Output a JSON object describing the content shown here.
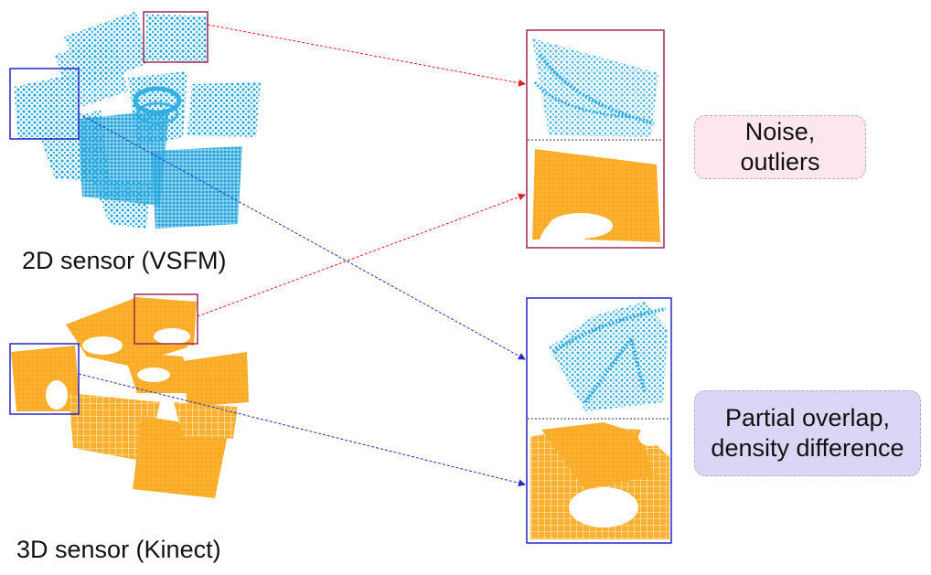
{
  "labels": {
    "sensor_2d": "2D sensor (VSFM)",
    "sensor_3d": "3D sensor (Kinect)"
  },
  "callouts": {
    "noise": {
      "line1": "Noise,",
      "line2": "outliers"
    },
    "overlap": {
      "line1": "Partial overlap,",
      "line2": "density difference"
    }
  },
  "colors": {
    "vsfm_points": "#29abe2",
    "kinect_points": "#fbb12f",
    "red_box": "#a0285a",
    "blue_box": "#2626c8",
    "red_arrow": "#e02020",
    "blue_arrow": "#2a2ac8",
    "noise_callout_bg": "#fde6ee",
    "overlap_callout_bg": "#d9d6f6"
  }
}
